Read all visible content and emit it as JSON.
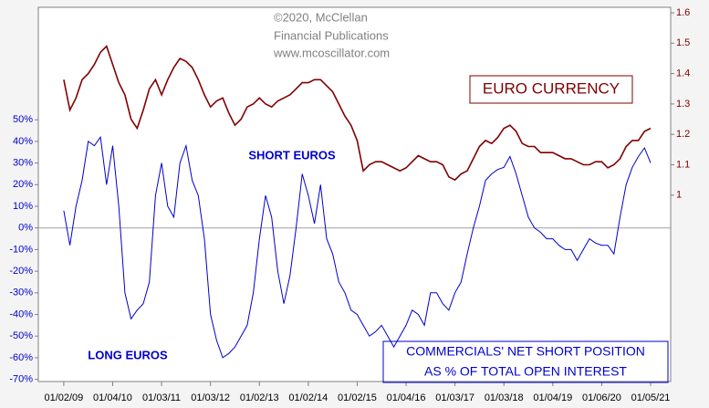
{
  "chart_data": {
    "type": "line",
    "annotations": [
      "©2020, McClellan",
      "Financial Publications",
      "www.mcoscillator.com",
      "SHORT EUROS",
      "LONG EUROS",
      "AS % OF TOTAL OPEN INTEREST"
    ],
    "x": [
      2009,
      2009.125,
      2009.25,
      2009.375,
      2009.5,
      2009.625,
      2009.75,
      2009.875,
      2010,
      2010.125,
      2010.25,
      2010.375,
      2010.5,
      2010.625,
      2010.75,
      2010.875,
      2011,
      2011.125,
      2011.25,
      2011.375,
      2011.5,
      2011.625,
      2011.75,
      2011.875,
      2012,
      2012.125,
      2012.25,
      2012.375,
      2012.5,
      2012.625,
      2012.75,
      2012.875,
      2013,
      2013.125,
      2013.25,
      2013.375,
      2013.5,
      2013.625,
      2013.75,
      2013.875,
      2014,
      2014.125,
      2014.25,
      2014.375,
      2014.5,
      2014.625,
      2014.75,
      2014.875,
      2015,
      2015.125,
      2015.25,
      2015.375,
      2015.5,
      2015.625,
      2015.75,
      2015.875,
      2016,
      2016.125,
      2016.25,
      2016.375,
      2016.5,
      2016.625,
      2016.75,
      2016.875,
      2017,
      2017.125,
      2017.25,
      2017.375,
      2017.5,
      2017.625,
      2017.75,
      2017.875,
      2018,
      2018.125,
      2018.25,
      2018.375,
      2018.5,
      2018.625,
      2018.75,
      2018.875,
      2019,
      2019.125,
      2019.25,
      2019.375,
      2019.5,
      2019.625,
      2019.75,
      2019.875,
      2020,
      2020.125,
      2020.25,
      2020.375,
      2020.5,
      2020.625,
      2020.75,
      2020.875,
      2021
    ],
    "series": [
      {
        "name": "EURO CURRENCY",
        "color": "#800000",
        "axis": "y2",
        "values": [
          1.38,
          1.28,
          1.32,
          1.38,
          1.4,
          1.43,
          1.47,
          1.49,
          1.43,
          1.37,
          1.33,
          1.25,
          1.22,
          1.28,
          1.35,
          1.38,
          1.33,
          1.38,
          1.42,
          1.45,
          1.44,
          1.42,
          1.38,
          1.33,
          1.29,
          1.31,
          1.32,
          1.27,
          1.23,
          1.25,
          1.29,
          1.3,
          1.32,
          1.3,
          1.29,
          1.31,
          1.32,
          1.33,
          1.35,
          1.37,
          1.37,
          1.38,
          1.38,
          1.36,
          1.34,
          1.3,
          1.26,
          1.23,
          1.18,
          1.08,
          1.1,
          1.11,
          1.11,
          1.1,
          1.09,
          1.08,
          1.09,
          1.11,
          1.13,
          1.12,
          1.11,
          1.11,
          1.1,
          1.06,
          1.05,
          1.07,
          1.08,
          1.12,
          1.16,
          1.18,
          1.17,
          1.19,
          1.22,
          1.23,
          1.21,
          1.17,
          1.16,
          1.16,
          1.14,
          1.14,
          1.14,
          1.13,
          1.12,
          1.12,
          1.11,
          1.1,
          1.1,
          1.11,
          1.11,
          1.09,
          1.1,
          1.12,
          1.16,
          1.18,
          1.18,
          1.21,
          1.22
        ]
      },
      {
        "name": "COMMERCIALS' NET SHORT POSITION",
        "color": "#0000cc",
        "values": [
          8,
          -8,
          10,
          22,
          40,
          38,
          42,
          20,
          38,
          10,
          -30,
          -42,
          -38,
          -35,
          -25,
          15,
          30,
          10,
          5,
          30,
          38,
          22,
          15,
          -5,
          -40,
          -52,
          -60,
          -58,
          -55,
          -50,
          -45,
          -30,
          -5,
          15,
          5,
          -20,
          -35,
          -22,
          0,
          25,
          15,
          2,
          20,
          -5,
          -12,
          -25,
          -30,
          -38,
          -40,
          -45,
          -50,
          -48,
          -45,
          -50,
          -55,
          -50,
          -45,
          -38,
          -40,
          -45,
          -30,
          -30,
          -35,
          -38,
          -30,
          -25,
          -12,
          0,
          10,
          22,
          25,
          27,
          28,
          33,
          25,
          15,
          5,
          0,
          -2,
          -5,
          -5,
          -8,
          -10,
          -10,
          -15,
          -10,
          -5,
          -7,
          -8,
          -8,
          -12,
          5,
          20,
          28,
          33,
          37,
          30
        ]
      }
    ],
    "xlim": [
      2008.48,
      2021.41
    ],
    "xticks": [
      {
        "value": 2009,
        "label": "01/02/09"
      },
      {
        "value": 2010,
        "label": "01/04/10"
      },
      {
        "value": 2011,
        "label": "01/03/11"
      },
      {
        "value": 2012,
        "label": "01/03/12"
      },
      {
        "value": 2013,
        "label": "01/02/13"
      },
      {
        "value": 2014,
        "label": "01/02/14"
      },
      {
        "value": 2015,
        "label": "01/02/15"
      },
      {
        "value": 2016,
        "label": "01/04/16"
      },
      {
        "value": 2017,
        "label": "01/03/17"
      },
      {
        "value": 2018,
        "label": "01/03/18"
      },
      {
        "value": 2019,
        "label": "01/04/19"
      },
      {
        "value": 2020,
        "label": "01/06/20"
      },
      {
        "value": 2021,
        "label": "01/05/21"
      }
    ],
    "ylim": [
      -71,
      102
    ],
    "yticks": [
      {
        "value": -70,
        "label": "-70%"
      },
      {
        "value": -60,
        "label": "-60%"
      },
      {
        "value": -50,
        "label": "-50%"
      },
      {
        "value": -40,
        "label": "-40%"
      },
      {
        "value": -30,
        "label": "-30%"
      },
      {
        "value": -20,
        "label": "-20%"
      },
      {
        "value": -10,
        "label": "-10%"
      },
      {
        "value": 0,
        "label": "0%"
      },
      {
        "value": 10,
        "label": "10%"
      },
      {
        "value": 20,
        "label": "20%"
      },
      {
        "value": 30,
        "label": "30%"
      },
      {
        "value": 40,
        "label": "40%"
      },
      {
        "value": 50,
        "label": "50%"
      }
    ],
    "y2lim": [
      0.387,
      1.618
    ],
    "y2ticks": [
      1,
      1.1,
      1.2,
      1.3,
      1.4,
      1.5,
      1.6
    ],
    "reference_line": 0,
    "grid": false
  }
}
